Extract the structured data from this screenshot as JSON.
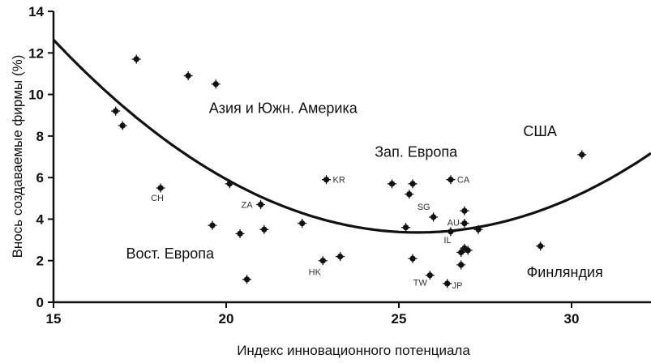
{
  "chart_data": {
    "type": "scatter",
    "title": "",
    "xlabel": "Индекс инновационного потенциала",
    "ylabel": "Внось создаваемые фирмы (%)",
    "xlim": [
      15,
      32.3
    ],
    "ylim": [
      0,
      14
    ],
    "xticks": [
      15,
      20,
      25,
      30
    ],
    "yticks": [
      0,
      2,
      4,
      6,
      8,
      10,
      12,
      14
    ],
    "grid": false,
    "legend": "none",
    "points": [
      {
        "x": 16.8,
        "y": 9.2,
        "label": ""
      },
      {
        "x": 17.0,
        "y": 8.5,
        "label": ""
      },
      {
        "x": 17.4,
        "y": 11.7,
        "label": ""
      },
      {
        "x": 18.1,
        "y": 5.5,
        "label": "CH"
      },
      {
        "x": 18.9,
        "y": 10.9,
        "label": ""
      },
      {
        "x": 19.6,
        "y": 3.7,
        "label": ""
      },
      {
        "x": 19.7,
        "y": 10.5,
        "label": ""
      },
      {
        "x": 20.1,
        "y": 5.7,
        "label": ""
      },
      {
        "x": 20.4,
        "y": 3.3,
        "label": ""
      },
      {
        "x": 20.6,
        "y": 1.1,
        "label": ""
      },
      {
        "x": 21.0,
        "y": 4.7,
        "label": "ZA"
      },
      {
        "x": 21.1,
        "y": 3.5,
        "label": ""
      },
      {
        "x": 22.2,
        "y": 3.8,
        "label": ""
      },
      {
        "x": 22.8,
        "y": 2.0,
        "label": "HK"
      },
      {
        "x": 22.9,
        "y": 5.9,
        "label": "KR"
      },
      {
        "x": 23.3,
        "y": 2.2,
        "label": ""
      },
      {
        "x": 24.8,
        "y": 5.7,
        "label": ""
      },
      {
        "x": 25.2,
        "y": 3.6,
        "label": ""
      },
      {
        "x": 25.3,
        "y": 5.2,
        "label": ""
      },
      {
        "x": 25.4,
        "y": 5.7,
        "label": ""
      },
      {
        "x": 25.4,
        "y": 2.1,
        "label": ""
      },
      {
        "x": 25.9,
        "y": 1.3,
        "label": "TW"
      },
      {
        "x": 26.0,
        "y": 4.1,
        "label": "SG"
      },
      {
        "x": 26.4,
        "y": 0.9,
        "label": "JP"
      },
      {
        "x": 26.5,
        "y": 5.9,
        "label": "CA"
      },
      {
        "x": 26.5,
        "y": 3.4,
        "label": "IL"
      },
      {
        "x": 26.8,
        "y": 2.4,
        "label": ""
      },
      {
        "x": 26.8,
        "y": 1.8,
        "label": ""
      },
      {
        "x": 26.9,
        "y": 4.4,
        "label": ""
      },
      {
        "x": 26.9,
        "y": 3.8,
        "label": "AU"
      },
      {
        "x": 26.9,
        "y": 2.6,
        "label": ""
      },
      {
        "x": 27.0,
        "y": 2.5,
        "label": ""
      },
      {
        "x": 27.3,
        "y": 3.5,
        "label": ""
      },
      {
        "x": 29.1,
        "y": 2.7,
        "label": ""
      },
      {
        "x": 30.3,
        "y": 7.1,
        "label": ""
      }
    ],
    "fit_curve": {
      "type": "quadratic",
      "points": [
        [
          15,
          12.6
        ],
        [
          20,
          6.0
        ],
        [
          25.7,
          3.3
        ],
        [
          30,
          5.0
        ],
        [
          32.3,
          7.2
        ]
      ]
    },
    "annotations": [
      {
        "text": "Азия и Южн. Америка",
        "x": 19.5,
        "y": 9.1
      },
      {
        "text": "Зап. Европа",
        "x": 24.3,
        "y": 7.0
      },
      {
        "text": "США",
        "x": 28.6,
        "y": 8.0
      },
      {
        "text": "Вост. Европа",
        "x": 17.1,
        "y": 2.1
      },
      {
        "text": "Финляндия",
        "x": 28.7,
        "y": 1.2
      }
    ]
  }
}
